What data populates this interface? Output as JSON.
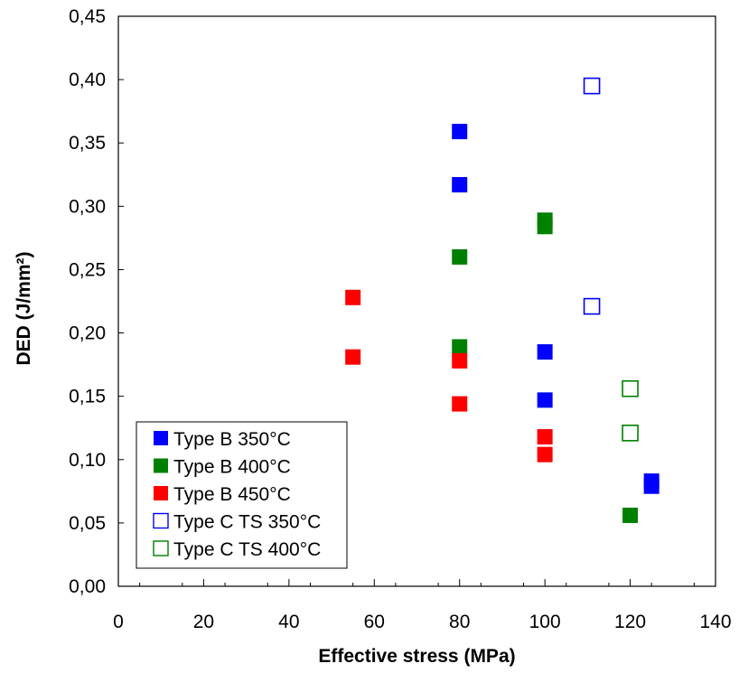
{
  "chart_data": {
    "type": "scatter",
    "xlabel": "Effective stress (MPa)",
    "ylabel": "DED (J/mm²)",
    "xlim": [
      0,
      140
    ],
    "ylim": [
      0,
      0.45
    ],
    "x_ticks": [
      0,
      20,
      40,
      60,
      80,
      100,
      120,
      140
    ],
    "x_tick_labels": [
      "0",
      "20",
      "40",
      "60",
      "80",
      "100",
      "120",
      "140"
    ],
    "y_ticks": [
      0,
      0.05,
      0.1,
      0.15,
      0.2,
      0.25,
      0.3,
      0.35,
      0.4,
      0.45
    ],
    "y_tick_labels": [
      "0,00",
      "0,05",
      "0,10",
      "0,15",
      "0,20",
      "0,25",
      "0,30",
      "0,35",
      "0,40",
      "0,45"
    ],
    "grid": false,
    "legend_position": "bottom-left",
    "series": [
      {
        "name": "Type B 350°C",
        "color": "#0000ff",
        "marker": "filled-square",
        "points": [
          [
            80,
            0.359
          ],
          [
            80,
            0.317
          ],
          [
            100,
            0.185
          ],
          [
            100,
            0.147
          ],
          [
            125,
            0.083
          ],
          [
            125,
            0.079
          ]
        ]
      },
      {
        "name": "Type B 400°C",
        "color": "#008000",
        "marker": "filled-square",
        "points": [
          [
            80,
            0.26
          ],
          [
            80,
            0.189
          ],
          [
            100,
            0.289
          ],
          [
            100,
            0.284
          ],
          [
            120,
            0.056
          ]
        ]
      },
      {
        "name": "Type B 450°C",
        "color": "#ff0000",
        "marker": "filled-square",
        "points": [
          [
            55,
            0.228
          ],
          [
            55,
            0.181
          ],
          [
            80,
            0.178
          ],
          [
            80,
            0.144
          ],
          [
            100,
            0.118
          ],
          [
            100,
            0.104
          ]
        ]
      },
      {
        "name": "Type C TS 350°C",
        "color": "#0000ff",
        "marker": "hollow-square",
        "points": [
          [
            111,
            0.395
          ],
          [
            111,
            0.221
          ]
        ]
      },
      {
        "name": "Type C TS 400°C",
        "color": "#008000",
        "marker": "hollow-square",
        "points": [
          [
            120,
            0.156
          ],
          [
            120,
            0.121
          ]
        ]
      }
    ]
  }
}
